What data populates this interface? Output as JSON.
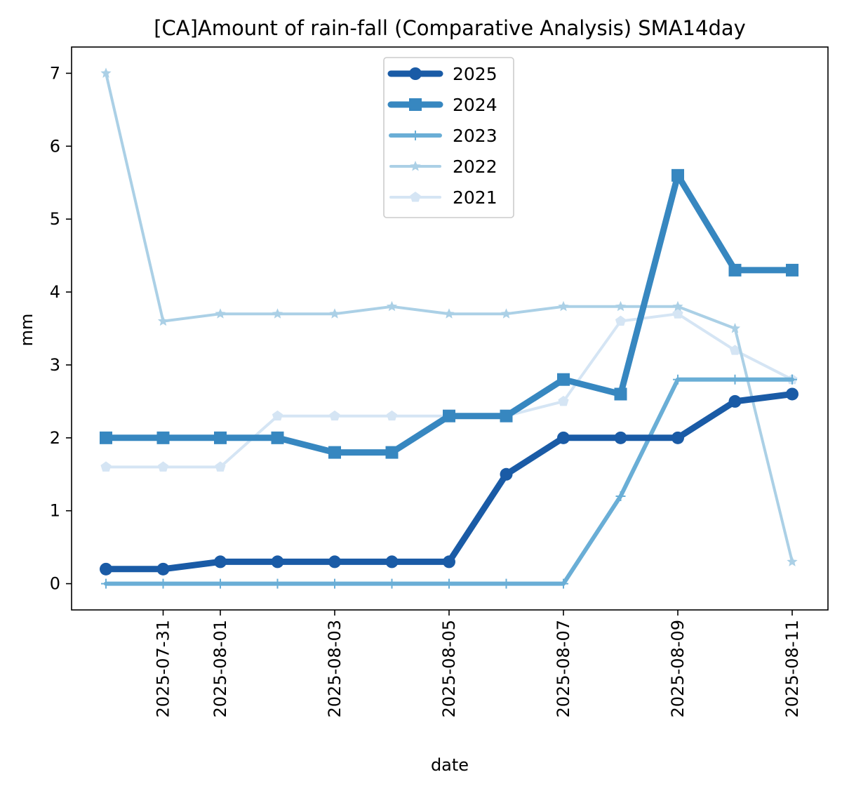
{
  "chart_data": {
    "type": "line",
    "title": "[CA]Amount of rain-fall (Comparative Analysis) SMA14day",
    "xlabel": "date",
    "ylabel": "mm",
    "x": [
      "2025-07-30",
      "2025-07-31",
      "2025-08-01",
      "2025-08-02",
      "2025-08-03",
      "2025-08-04",
      "2025-08-05",
      "2025-08-06",
      "2025-08-07",
      "2025-08-08",
      "2025-08-09",
      "2025-08-10",
      "2025-08-11"
    ],
    "xticks": [
      "2025-07-31",
      "2025-08-01",
      "2025-08-03",
      "2025-08-05",
      "2025-08-07",
      "2025-08-09",
      "2025-08-11"
    ],
    "yticks": [
      0,
      1,
      2,
      3,
      4,
      5,
      6,
      7
    ],
    "ylim": [
      -0.36,
      7.36
    ],
    "legend_position": "upper center",
    "grid": false,
    "series": [
      {
        "name": "2025",
        "color": "#1a5ba6",
        "marker": "circle",
        "width": "thick",
        "values": [
          0.2,
          0.2,
          0.3,
          0.3,
          0.3,
          0.3,
          0.3,
          1.5,
          2.0,
          2.0,
          2.0,
          2.5,
          2.6
        ]
      },
      {
        "name": "2024",
        "color": "#3787c0",
        "marker": "square",
        "width": "thick",
        "values": [
          2.0,
          2.0,
          2.0,
          2.0,
          1.8,
          1.8,
          2.3,
          2.3,
          2.8,
          2.6,
          5.6,
          4.3,
          4.3
        ]
      },
      {
        "name": "2023",
        "color": "#6aaed6",
        "marker": "plus",
        "width": "medium",
        "values": [
          0.0,
          0.0,
          0.0,
          0.0,
          0.0,
          0.0,
          0.0,
          0.0,
          0.0,
          1.2,
          2.8,
          2.8,
          2.8
        ]
      },
      {
        "name": "2022",
        "color": "#abd0e6",
        "marker": "star",
        "width": "thin",
        "values": [
          7.0,
          3.6,
          3.7,
          3.7,
          3.7,
          3.8,
          3.7,
          3.7,
          3.8,
          3.8,
          3.8,
          3.5,
          0.3
        ]
      },
      {
        "name": "2021",
        "color": "#d5e5f4",
        "marker": "pentagon",
        "width": "thin",
        "values": [
          1.6,
          1.6,
          1.6,
          2.3,
          2.3,
          2.3,
          2.3,
          2.3,
          2.5,
          3.6,
          3.7,
          3.2,
          2.8
        ]
      }
    ]
  }
}
